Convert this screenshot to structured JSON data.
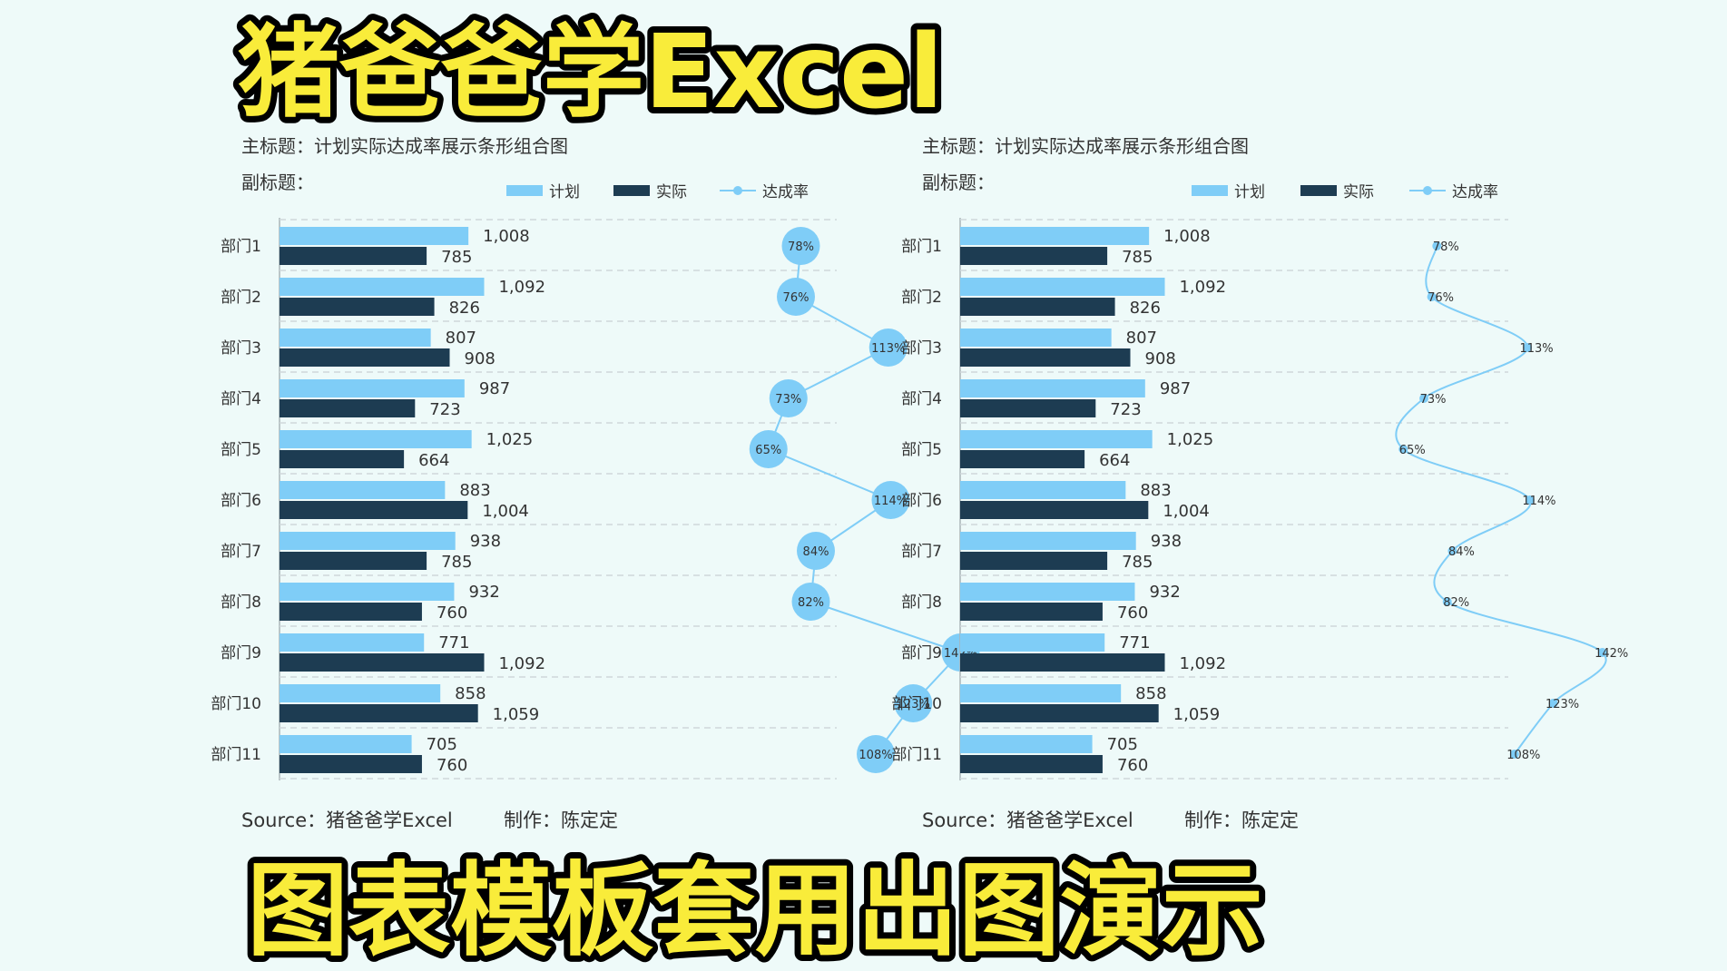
{
  "banner": {
    "top_title": "猪爸爸学Excel",
    "bottom_title": "图表模板套用出图演示"
  },
  "colors": {
    "plan": "#7fcdf7",
    "actual": "#1d3c52",
    "rate": "#7fcdf7",
    "grid": "#cfd8db",
    "banner_fill": "#f9ec3a",
    "banner_stroke": "#000000"
  },
  "chart_data": [
    {
      "type": "bar",
      "orientation": "horizontal",
      "title": "主标题：计划实际达成率展示条形组合图",
      "subtitle": "副标题：",
      "legend": [
        "计划",
        "实际",
        "达成率"
      ],
      "legend_position": "top-right",
      "source": "Source：猪爸爸学Excel",
      "maker": "制作：陈定定",
      "rate_style": "bubble",
      "categories": [
        "部门1",
        "部门2",
        "部门3",
        "部门4",
        "部门5",
        "部门6",
        "部门7",
        "部门8",
        "部门9",
        "部门10",
        "部门11"
      ],
      "series": [
        {
          "name": "计划",
          "values": [
            1008,
            1092,
            807,
            987,
            1025,
            883,
            938,
            932,
            771,
            858,
            705
          ],
          "labels": [
            "1,008",
            "1,092",
            "807",
            "987",
            "1,025",
            "883",
            "938",
            "932",
            "771",
            "858",
            "705"
          ]
        },
        {
          "name": "实际",
          "values": [
            785,
            826,
            908,
            723,
            664,
            1004,
            785,
            760,
            1092,
            1059,
            760
          ],
          "labels": [
            "785",
            "826",
            "908",
            "723",
            "664",
            "1,004",
            "785",
            "760",
            "1,092",
            "1,059",
            "760"
          ]
        },
        {
          "name": "达成率",
          "values": [
            78,
            76,
            113,
            73,
            65,
            114,
            84,
            82,
            142,
            123,
            108
          ],
          "labels": [
            "78%",
            "76%",
            "113%",
            "73%",
            "65%",
            "114%",
            "84%",
            "82%",
            "142%",
            "123%",
            "108%"
          ]
        }
      ],
      "grid": true
    },
    {
      "type": "bar",
      "orientation": "horizontal",
      "title": "主标题：计划实际达成率展示条形组合图",
      "subtitle": "副标题：",
      "legend": [
        "计划",
        "实际",
        "达成率"
      ],
      "legend_position": "top-right",
      "source": "Source：猪爸爸学Excel",
      "maker": "制作：陈定定",
      "rate_style": "smooth-line",
      "categories": [
        "部门1",
        "部门2",
        "部门3",
        "部门4",
        "部门5",
        "部门6",
        "部门7",
        "部门8",
        "部门9",
        "部门10",
        "部门11"
      ],
      "series": [
        {
          "name": "计划",
          "values": [
            1008,
            1092,
            807,
            987,
            1025,
            883,
            938,
            932,
            771,
            858,
            705
          ],
          "labels": [
            "1,008",
            "1,092",
            "807",
            "987",
            "1,025",
            "883",
            "938",
            "932",
            "771",
            "858",
            "705"
          ]
        },
        {
          "name": "实际",
          "values": [
            785,
            826,
            908,
            723,
            664,
            1004,
            785,
            760,
            1092,
            1059,
            760
          ],
          "labels": [
            "785",
            "826",
            "908",
            "723",
            "664",
            "1,004",
            "785",
            "760",
            "1,092",
            "1,059",
            "760"
          ]
        },
        {
          "name": "达成率",
          "values": [
            78,
            76,
            113,
            73,
            65,
            114,
            84,
            82,
            142,
            123,
            108
          ],
          "labels": [
            "78%",
            "76%",
            "113%",
            "73%",
            "65%",
            "114%",
            "84%",
            "82%",
            "142%",
            "123%",
            "108%"
          ]
        }
      ],
      "grid": true
    }
  ]
}
